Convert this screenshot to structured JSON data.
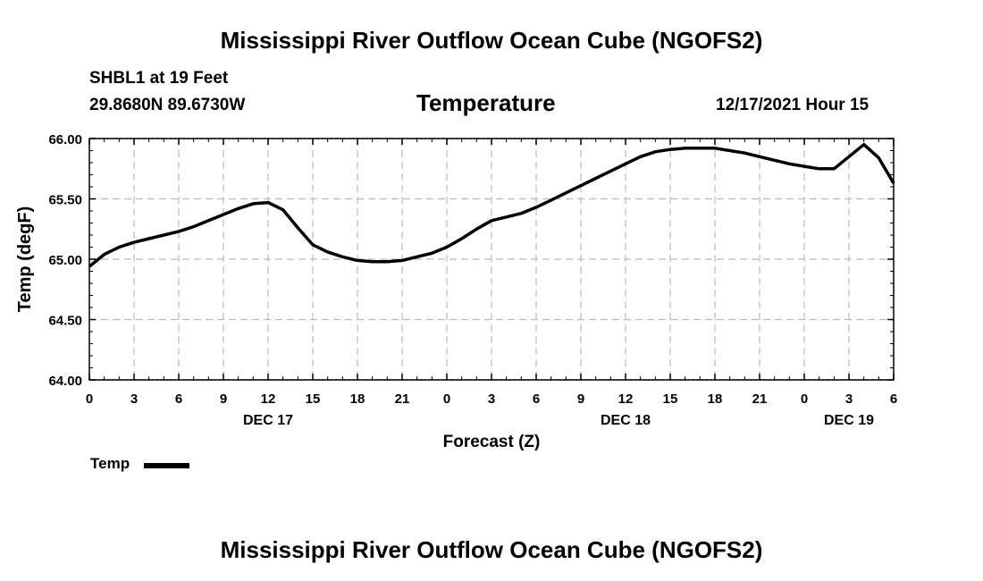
{
  "page": {
    "title": "Mississippi River Outflow Ocean Cube (NGOFS2)",
    "footer_title": "Mississippi River Outflow Ocean Cube (NGOFS2)",
    "station": "SHBL1 at 19 Feet",
    "location": "29.8680N  89.6730W",
    "subtitle": "Temperature",
    "datetime": "12/17/2021 Hour 15"
  },
  "chart_data": {
    "type": "line",
    "title": "Temperature",
    "xlabel": "Forecast (Z)",
    "ylabel": "Temp (degF)",
    "ylim": [
      64.0,
      66.0
    ],
    "xlim": [
      0,
      54
    ],
    "grid": true,
    "y_ticks": [
      "64.00",
      "64.50",
      "65.00",
      "65.50",
      "66.00"
    ],
    "y_tick_values": [
      64.0,
      64.5,
      65.0,
      65.5,
      66.0
    ],
    "x_ticks": [
      "0",
      "3",
      "6",
      "9",
      "12",
      "15",
      "18",
      "21",
      "0",
      "3",
      "6",
      "9",
      "12",
      "15",
      "18",
      "21",
      "0",
      "3",
      "6"
    ],
    "day_labels": [
      {
        "label": "DEC 17",
        "hour": 12
      },
      {
        "label": "DEC 18",
        "hour": 36
      },
      {
        "label": "DEC 19",
        "hour": 51
      }
    ],
    "legend": "Temp",
    "color": "#000000",
    "series": [
      {
        "name": "Temp",
        "x": [
          0,
          1,
          2,
          3,
          4,
          5,
          6,
          7,
          8,
          9,
          10,
          11,
          12,
          13,
          14,
          15,
          16,
          17,
          18,
          19,
          20,
          21,
          22,
          23,
          24,
          25,
          26,
          27,
          28,
          29,
          30,
          31,
          32,
          33,
          34,
          35,
          36,
          37,
          38,
          39,
          40,
          41,
          42,
          43,
          44,
          45,
          46,
          47,
          48,
          49,
          50,
          51,
          52,
          53,
          54
        ],
        "values": [
          64.94,
          65.04,
          65.1,
          65.14,
          65.17,
          65.2,
          65.23,
          65.27,
          65.32,
          65.37,
          65.42,
          65.46,
          65.47,
          65.41,
          65.26,
          65.12,
          65.06,
          65.02,
          64.99,
          64.98,
          64.98,
          64.99,
          65.02,
          65.05,
          65.1,
          65.17,
          65.25,
          65.32,
          65.35,
          65.38,
          65.43,
          65.49,
          65.55,
          65.61,
          65.67,
          65.73,
          65.79,
          65.85,
          65.89,
          65.91,
          65.92,
          65.92,
          65.92,
          65.9,
          65.88,
          65.85,
          65.82,
          65.79,
          65.77,
          65.75,
          65.75,
          65.85,
          65.95,
          65.84,
          65.63
        ]
      }
    ]
  }
}
